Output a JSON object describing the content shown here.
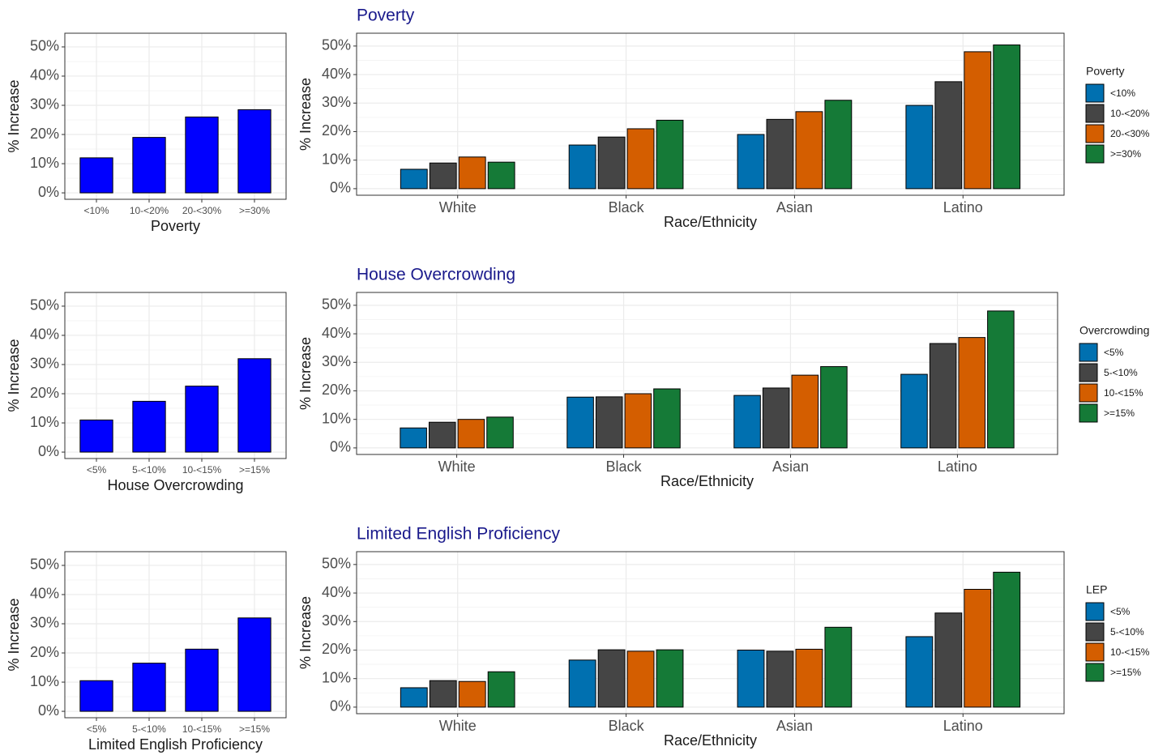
{
  "chart_data": [
    {
      "type": "bar",
      "x_label": "Poverty",
      "y_label": "% Increase",
      "categories": [
        "<10%",
        "10-<20%",
        "20-<30%",
        ">=30%"
      ],
      "values": [
        12,
        19,
        26,
        28.5
      ],
      "color": "#0000ff",
      "ylim": [
        -2.2,
        54.7
      ],
      "yticks": [
        {
          "value": 0,
          "label": "0%"
        },
        {
          "value": 10,
          "label": "10%"
        },
        {
          "value": 20,
          "label": "20%"
        },
        {
          "value": 30,
          "label": "30%"
        },
        {
          "value": 40,
          "label": "40%"
        },
        {
          "value": 50,
          "label": "50%"
        }
      ],
      "grid": true
    },
    {
      "type": "grouped_bar",
      "title": "Poverty",
      "x_label": "Race/Ethnicity",
      "y_label": "% Increase",
      "legend_title": "Poverty",
      "legend": "right",
      "categories": [
        "White",
        "Black",
        "Asian",
        "Latino"
      ],
      "series": [
        {
          "name": "<10%",
          "color": "#0070b0",
          "values": [
            6.8,
            15.3,
            19,
            29.2
          ]
        },
        {
          "name": "10-<20%",
          "color": "#454545",
          "values": [
            9,
            18.1,
            24.3,
            37.5
          ]
        },
        {
          "name": "20-<30%",
          "color": "#d45e00",
          "values": [
            11.1,
            21,
            27,
            48
          ]
        },
        {
          "name": ">=30%",
          "color": "#157a37",
          "values": [
            9.3,
            24,
            31,
            50.4
          ]
        }
      ],
      "ylim": [
        -2.3,
        54.5
      ],
      "yticks": [
        {
          "value": 0,
          "label": "0%"
        },
        {
          "value": 10,
          "label": "10%"
        },
        {
          "value": 20,
          "label": "20%"
        },
        {
          "value": 30,
          "label": "30%"
        },
        {
          "value": 40,
          "label": "40%"
        },
        {
          "value": 50,
          "label": "50%"
        }
      ],
      "grid": true
    },
    {
      "type": "bar",
      "x_label": "House Overcrowding",
      "y_label": "% Increase",
      "categories": [
        "<5%",
        "5-<10%",
        "10-<15%",
        ">=15%"
      ],
      "values": [
        11,
        17.4,
        22.6,
        32
      ],
      "color": "#0000ff",
      "ylim": [
        -2.2,
        54.7
      ],
      "yticks": [
        {
          "value": 0,
          "label": "0%"
        },
        {
          "value": 10,
          "label": "10%"
        },
        {
          "value": 20,
          "label": "20%"
        },
        {
          "value": 30,
          "label": "30%"
        },
        {
          "value": 40,
          "label": "40%"
        },
        {
          "value": 50,
          "label": "50%"
        }
      ],
      "grid": true
    },
    {
      "type": "grouped_bar",
      "title": "House Overcrowding",
      "x_label": "Race/Ethnicity",
      "y_label": "% Increase",
      "legend_title": "Overcrowding",
      "legend": "right",
      "categories": [
        "White",
        "Black",
        "Asian",
        "Latino"
      ],
      "series": [
        {
          "name": "<5%",
          "color": "#0070b0",
          "values": [
            7,
            17.8,
            18.4,
            25.8
          ]
        },
        {
          "name": "5-<10%",
          "color": "#454545",
          "values": [
            9,
            17.9,
            21,
            36.6
          ]
        },
        {
          "name": "10-<15%",
          "color": "#d45e00",
          "values": [
            10,
            19,
            25.5,
            38.7
          ]
        },
        {
          "name": ">=15%",
          "color": "#157a37",
          "values": [
            10.8,
            20.7,
            28.5,
            48
          ]
        }
      ],
      "ylim": [
        -2.3,
        54.5
      ],
      "yticks": [
        {
          "value": 0,
          "label": "0%"
        },
        {
          "value": 10,
          "label": "10%"
        },
        {
          "value": 20,
          "label": "20%"
        },
        {
          "value": 30,
          "label": "30%"
        },
        {
          "value": 40,
          "label": "40%"
        },
        {
          "value": 50,
          "label": "50%"
        }
      ],
      "grid": true
    },
    {
      "type": "bar",
      "x_label": "Limited English Proficiency",
      "y_label": "% Increase",
      "categories": [
        "<5%",
        "5-<10%",
        "10-<15%",
        ">=15%"
      ],
      "values": [
        10.5,
        16.5,
        21.3,
        32
      ],
      "color": "#0000ff",
      "ylim": [
        -2.2,
        54.7
      ],
      "yticks": [
        {
          "value": 0,
          "label": "0%"
        },
        {
          "value": 10,
          "label": "10%"
        },
        {
          "value": 20,
          "label": "20%"
        },
        {
          "value": 30,
          "label": "30%"
        },
        {
          "value": 40,
          "label": "40%"
        },
        {
          "value": 50,
          "label": "50%"
        }
      ],
      "grid": true
    },
    {
      "type": "grouped_bar",
      "title": "Limited English Proficiency",
      "x_label": "Race/Ethnicity",
      "y_label": "% Increase",
      "legend_title": "LEP",
      "legend": "right",
      "categories": [
        "White",
        "Black",
        "Asian",
        "Latino"
      ],
      "series": [
        {
          "name": "<5%",
          "color": "#0070b0",
          "values": [
            6.8,
            16.5,
            20,
            24.7
          ]
        },
        {
          "name": "5-<10%",
          "color": "#454545",
          "values": [
            9.3,
            20.1,
            19.6,
            33
          ]
        },
        {
          "name": "10-<15%",
          "color": "#d45e00",
          "values": [
            9,
            19.6,
            20.3,
            41.3
          ]
        },
        {
          "name": ">=15%",
          "color": "#157a37",
          "values": [
            12.4,
            20.1,
            28,
            47.3
          ]
        }
      ],
      "ylim": [
        -2.3,
        54.5
      ],
      "yticks": [
        {
          "value": 0,
          "label": "0%"
        },
        {
          "value": 10,
          "label": "10%"
        },
        {
          "value": 20,
          "label": "20%"
        },
        {
          "value": 30,
          "label": "30%"
        },
        {
          "value": 40,
          "label": "40%"
        },
        {
          "value": 50,
          "label": "50%"
        }
      ],
      "grid": true
    }
  ]
}
